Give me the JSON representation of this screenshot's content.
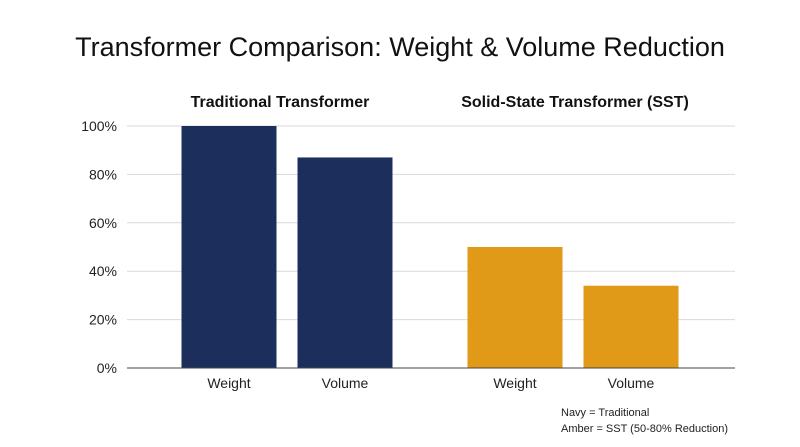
{
  "title": "Transformer Comparison: Weight & Volume Reduction",
  "legend": {
    "line1": "Navy = Traditional",
    "line2": "Amber = SST (50-80% Reduction)"
  },
  "colors": {
    "navy": "#1c2f5c",
    "amber": "#e19a17",
    "grid": "#d9d9d9",
    "axis": "#444444"
  },
  "chart_data": {
    "type": "bar",
    "title": "Transformer Comparison: Weight & Volume Reduction",
    "ylim": [
      0,
      100
    ],
    "yticks": [
      0,
      20,
      40,
      60,
      80,
      100
    ],
    "ytick_labels": [
      "0%",
      "20%",
      "40%",
      "60%",
      "80%",
      "100%"
    ],
    "grid": true,
    "groups": [
      {
        "name": "Traditional Transformer",
        "color": "#1c2f5c",
        "categories": [
          "Weight",
          "Volume"
        ],
        "values": [
          100,
          87
        ]
      },
      {
        "name": "Solid-State Transformer (SST)",
        "color": "#e19a17",
        "categories": [
          "Weight",
          "Volume"
        ],
        "values": [
          50,
          34
        ]
      }
    ]
  }
}
